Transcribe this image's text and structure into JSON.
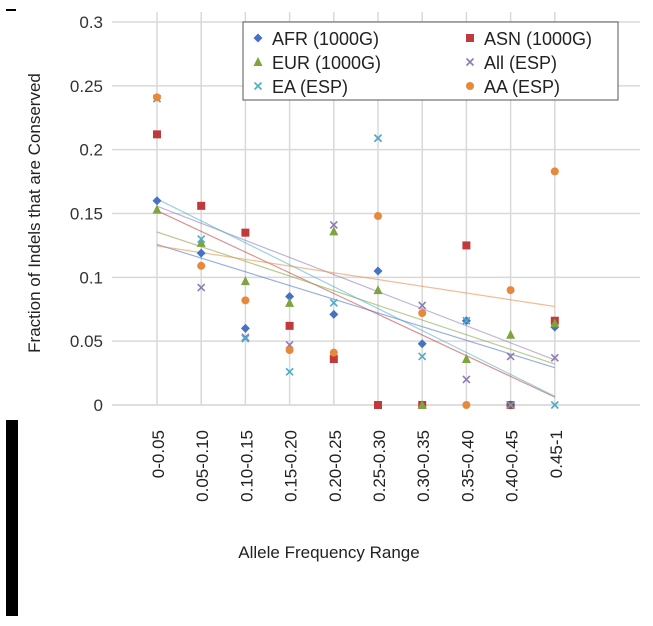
{
  "chart_data": {
    "type": "scatter",
    "xlabel": "Allele  Frequency Range",
    "ylabel": "Fraction of Indels that are Conserved",
    "ylim": [
      0,
      0.3
    ],
    "yticks": [
      "0",
      "0.05",
      "0.1",
      "0.15",
      "0.2",
      "0.25",
      "0.3"
    ],
    "categories": [
      "0-0.05",
      "0.05-0.10",
      "0.10-0.15",
      "0.15-0.20",
      "0.20-0.25",
      "0.25-0.30",
      "0.30-0.35",
      "0.35-0.40",
      "0.40-0.45",
      "0.45-1"
    ],
    "legend_position": "top-right",
    "trendlines": "linear",
    "grid": true,
    "series": [
      {
        "name": "AFR (1000G)",
        "color": "#4472c4",
        "marker": "diamond",
        "values": [
          0.16,
          0.119,
          0.06,
          0.085,
          0.071,
          0.105,
          0.048,
          0.066,
          0,
          0.061
        ]
      },
      {
        "name": "ASN (1000G)",
        "color": "#c0393b",
        "marker": "square",
        "values": [
          0.212,
          0.156,
          0.135,
          0.062,
          0.036,
          0,
          0,
          0.125,
          0,
          0.066
        ]
      },
      {
        "name": "EUR (1000G)",
        "color": "#7fa33e",
        "marker": "triangle",
        "values": [
          0.153,
          0.127,
          0.097,
          0.08,
          0.136,
          0.09,
          0,
          0.036,
          0.055,
          0.064
        ]
      },
      {
        "name": "All (ESP)",
        "color": "#8e7bb5",
        "marker": "x",
        "values": [
          0.24,
          0.092,
          0.053,
          0.047,
          0.141,
          0.209,
          0.078,
          0.02,
          0.038,
          0.037
        ]
      },
      {
        "name": "EA (ESP)",
        "color": "#4bacc6",
        "marker": "x",
        "values": [
          0.24,
          0.13,
          0.052,
          0.026,
          0.08,
          0.209,
          0.038,
          0.066,
          0,
          0
        ]
      },
      {
        "name": "AA (ESP)",
        "color": "#e8883a",
        "marker": "circle",
        "values": [
          0.241,
          0.109,
          0.082,
          0.043,
          0.041,
          0.148,
          0.072,
          0,
          0.09,
          0.183
        ]
      }
    ]
  }
}
